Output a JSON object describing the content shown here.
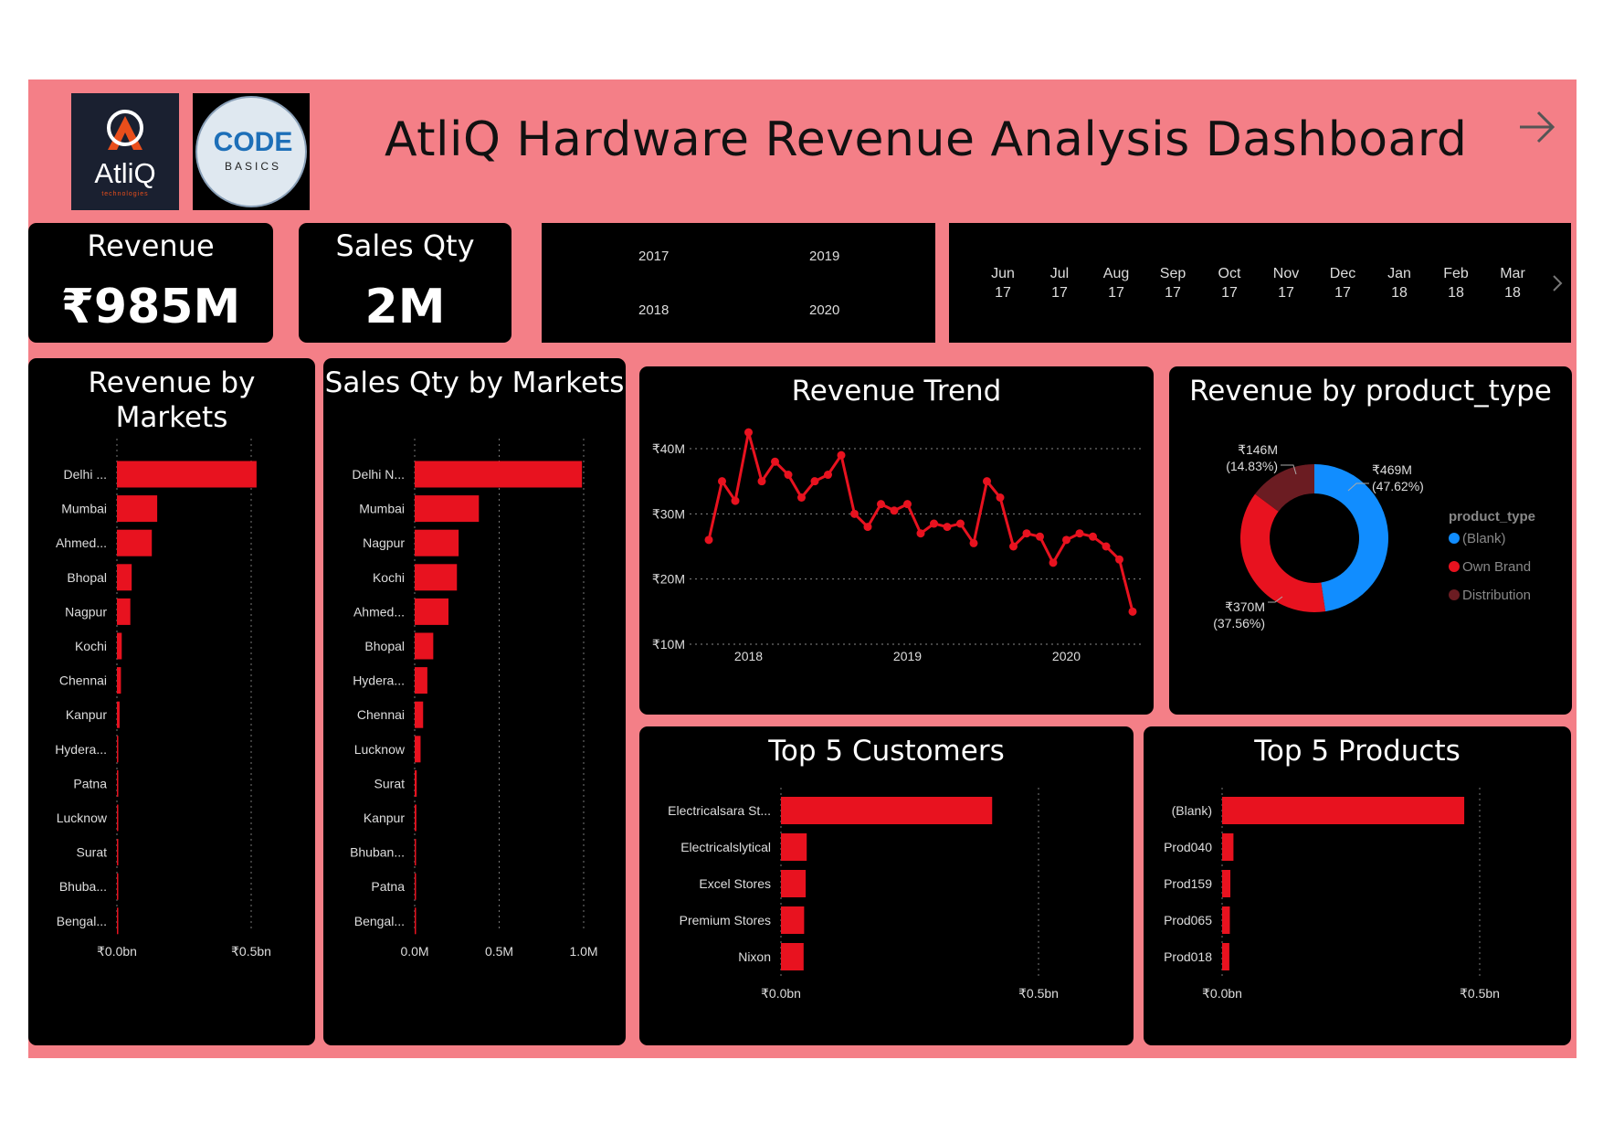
{
  "header": {
    "title": "AtliQ Hardware Revenue Analysis Dashboard",
    "logo_atliq_text": "AtliQ",
    "logo_atliq_sub": "technologies",
    "logo_codebasics_text": "CODE",
    "logo_codebasics_sub": "BASICS"
  },
  "kpis": {
    "revenue_label": "Revenue",
    "revenue_value": "₹985M",
    "sales_qty_label": "Sales Qty",
    "sales_qty_value": "2M"
  },
  "year_slicer": [
    "2017",
    "2019",
    "2018",
    "2020"
  ],
  "month_slicer": [
    {
      "m": "Jun",
      "y": "17"
    },
    {
      "m": "Jul",
      "y": "17"
    },
    {
      "m": "Aug",
      "y": "17"
    },
    {
      "m": "Sep",
      "y": "17"
    },
    {
      "m": "Oct",
      "y": "17"
    },
    {
      "m": "Nov",
      "y": "17"
    },
    {
      "m": "Dec",
      "y": "17"
    },
    {
      "m": "Jan",
      "y": "18"
    },
    {
      "m": "Feb",
      "y": "18"
    },
    {
      "m": "Mar",
      "y": "18"
    }
  ],
  "colors": {
    "bar": "#e8121f",
    "blank": "#118dff",
    "own_brand": "#e8121f",
    "distribution": "#6b1c22",
    "background": "#f47f87"
  },
  "chart_data": [
    {
      "type": "bar",
      "orientation": "horizontal",
      "title": "Revenue by Markets",
      "categories": [
        "Delhi ...",
        "Mumbai",
        "Ahmed...",
        "Bhopal",
        "Nagpur",
        "Kochi",
        "Chennai",
        "Kanpur",
        "Hydera...",
        "Patna",
        "Lucknow",
        "Surat",
        "Bhuba...",
        "Bengal..."
      ],
      "values": [
        0.52,
        0.15,
        0.13,
        0.055,
        0.05,
        0.018,
        0.015,
        0.01,
        0.004,
        0.002,
        0.002,
        0.002,
        0.001,
        0.0005
      ],
      "unit": "bn",
      "xticks": [
        "₹0.0bn",
        "₹0.5bn"
      ],
      "xlim": [
        0,
        0.5
      ]
    },
    {
      "type": "bar",
      "orientation": "horizontal",
      "title": "Sales Qty by Markets",
      "categories": [
        "Delhi N...",
        "Mumbai",
        "Nagpur",
        "Kochi",
        "Ahmed...",
        "Bhopal",
        "Hydera...",
        "Chennai",
        "Lucknow",
        "Surat",
        "Kanpur",
        "Bhuban...",
        "Patna",
        "Bengal..."
      ],
      "values": [
        0.99,
        0.38,
        0.26,
        0.25,
        0.2,
        0.11,
        0.075,
        0.05,
        0.035,
        0.012,
        0.01,
        0.008,
        0.004,
        0.002
      ],
      "unit": "M",
      "xticks": [
        "0.0M",
        "0.5M",
        "1.0M"
      ],
      "xlim": [
        0,
        1.0
      ]
    },
    {
      "type": "line",
      "title": "Revenue Trend",
      "x": [
        "2017-10",
        "2017-11",
        "2017-12",
        "2018-01",
        "2018-02",
        "2018-03",
        "2018-04",
        "2018-05",
        "2018-06",
        "2018-07",
        "2018-08",
        "2018-09",
        "2018-10",
        "2018-11",
        "2018-12",
        "2019-01",
        "2019-02",
        "2019-03",
        "2019-04",
        "2019-05",
        "2019-06",
        "2019-07",
        "2019-08",
        "2019-09",
        "2019-10",
        "2019-11",
        "2019-12",
        "2020-01",
        "2020-02",
        "2020-03",
        "2020-04",
        "2020-05",
        "2020-06"
      ],
      "values": [
        26,
        35,
        32,
        42.5,
        35,
        38,
        36,
        32.5,
        35,
        36,
        39,
        30,
        28,
        31.5,
        30.5,
        31.5,
        27,
        28.5,
        28,
        28.5,
        25.5,
        35,
        32.5,
        25,
        27,
        26.5,
        22.5,
        26,
        27,
        26.5,
        25,
        23,
        15
      ],
      "yticks": [
        "₹10M",
        "₹20M",
        "₹30M",
        "₹40M"
      ],
      "xticks": [
        "2018",
        "2019",
        "2020"
      ],
      "ylim": [
        10,
        40
      ],
      "unit": "M"
    },
    {
      "type": "pie",
      "style": "donut",
      "title": "Revenue by product_type",
      "legend_title": "product_type",
      "legend_position": "right",
      "slices": [
        {
          "name": "(Blank)",
          "value": 469,
          "label": "₹469M",
          "pct": "(47.62%)"
        },
        {
          "name": "Own Brand",
          "value": 370,
          "label": "₹370M",
          "pct": "(37.56%)"
        },
        {
          "name": "Distribution",
          "value": 146,
          "label": "₹146M",
          "pct": "(14.83%)"
        }
      ]
    },
    {
      "type": "bar",
      "orientation": "horizontal",
      "title": "Top 5 Customers",
      "categories": [
        "Electricalsara St...",
        "Electricalslytical",
        "Excel Stores",
        "Premium Stores",
        "Nixon"
      ],
      "values": [
        0.41,
        0.05,
        0.048,
        0.045,
        0.044
      ],
      "unit": "bn",
      "xticks": [
        "₹0.0bn",
        "₹0.5bn"
      ],
      "xlim": [
        0,
        0.5
      ]
    },
    {
      "type": "bar",
      "orientation": "horizontal",
      "title": "Top 5 Products",
      "categories": [
        "(Blank)",
        "Prod040",
        "Prod159",
        "Prod065",
        "Prod018"
      ],
      "values": [
        0.47,
        0.022,
        0.016,
        0.015,
        0.014
      ],
      "unit": "bn",
      "xticks": [
        "₹0.0bn",
        "₹0.5bn"
      ],
      "xlim": [
        0,
        0.5
      ]
    }
  ]
}
